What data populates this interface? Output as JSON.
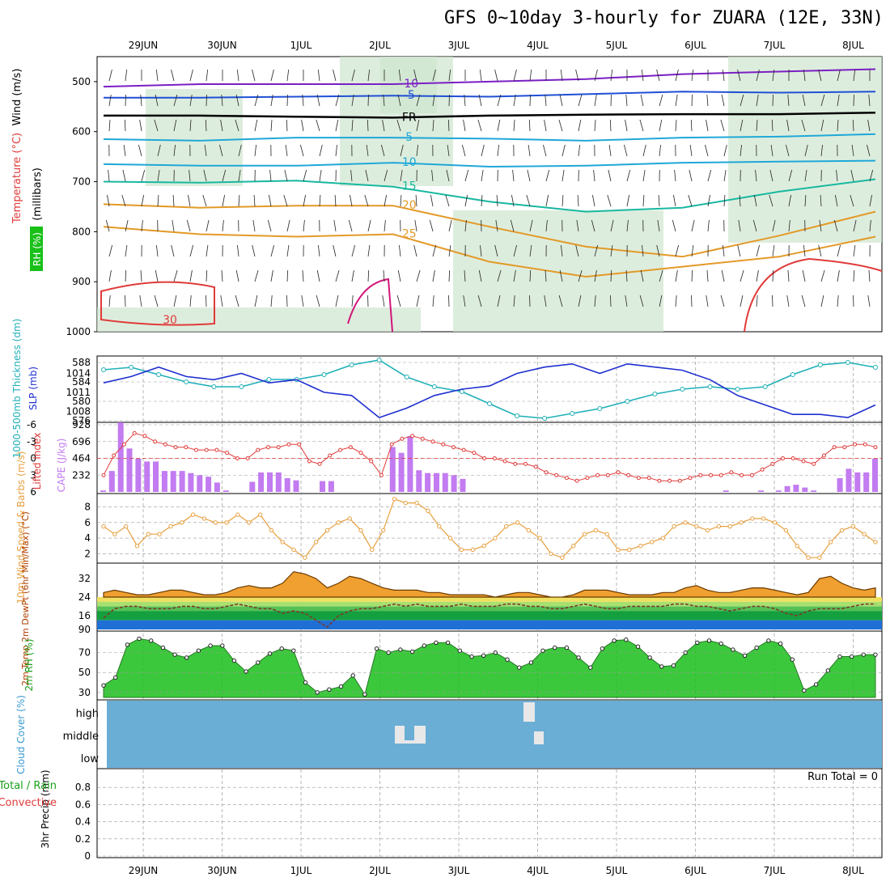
{
  "title": "GFS 0~10day 3-hourly for ZUARA (12E, 33N)",
  "dates": [
    "29JUN",
    "30JUN",
    "1JUL",
    "2JUL",
    "3JUL",
    "4JUL",
    "5JUL",
    "6JUL",
    "7JUL",
    "8JUL"
  ],
  "colors": {
    "purple": "#7a1fc4",
    "blue": "#1f4fd6",
    "cyan": "#1fa8d8",
    "teal": "#18b8a0",
    "orange": "#e39a28",
    "red": "#e03a3a",
    "magenta": "#d0157a",
    "rh_fill": "#cfe6cf",
    "cloud": "#6aaed6",
    "grid": "#999999",
    "cape_bar": "#c27bf0",
    "wind": "#e8a040",
    "rh2m": "#1bbf1b",
    "temp_fill": "#e66a10"
  },
  "chart_data": [
    {
      "id": "upper_air",
      "type": "contour",
      "ylabel": "(millibars)",
      "side_labels": [
        "Wind (m/s)",
        "Temperature (°C)",
        "RH (%)"
      ],
      "yticks": [
        "500",
        "600",
        "700",
        "800",
        "900",
        "1000"
      ],
      "ylim": [
        1000,
        450
      ],
      "isotherms": [
        {
          "label": "-10",
          "level": [
            510,
            505,
            505,
            505,
            500,
            495,
            485,
            480,
            475
          ]
        },
        {
          "label": "-5",
          "level": [
            532,
            532,
            530,
            528,
            530,
            525,
            520,
            522,
            520
          ]
        },
        {
          "label": "FR",
          "level": [
            568,
            568,
            570,
            572,
            568,
            566,
            565,
            565,
            562
          ]
        },
        {
          "label": "5",
          "level": [
            615,
            618,
            612,
            612,
            614,
            618,
            612,
            610,
            605
          ]
        },
        {
          "label": "10",
          "level": [
            665,
            668,
            668,
            662,
            670,
            668,
            662,
            660,
            658
          ]
        },
        {
          "label": "15",
          "level": [
            700,
            702,
            698,
            710,
            740,
            760,
            752,
            720,
            695
          ]
        },
        {
          "label": "20",
          "level": [
            745,
            752,
            748,
            748,
            790,
            830,
            850,
            808,
            760
          ]
        },
        {
          "label": "25",
          "level": [
            790,
            805,
            810,
            805,
            860,
            890,
            870,
            850,
            810
          ]
        }
      ],
      "labels": [
        "-10",
        "-5",
        "FR",
        "5",
        "10",
        "15",
        "20",
        "25",
        "30"
      ]
    },
    {
      "id": "thickness_slp",
      "type": "line",
      "ylabel": "1000-500mb Thickness (dm)",
      "ylabel2": "SLP (mb)",
      "yticks_left": [
        "576",
        "580",
        "584",
        "588"
      ],
      "yticks_right": [
        "1008",
        "1011",
        "1014"
      ],
      "series": [
        {
          "name": "Thickness",
          "color": "#1fb0b8",
          "values": [
            586.5,
            587.0,
            585.5,
            584.0,
            583.0,
            583.0,
            584.5,
            584.5,
            585.5,
            587.5,
            588.5,
            585.0,
            583.0,
            582.0,
            579.5,
            577.0,
            576.5,
            577.5,
            578.5,
            580.0,
            581.5,
            582.5,
            583.0,
            582.5,
            583.0,
            585.5,
            587.5,
            588.0,
            587.0
          ]
        },
        {
          "name": "SLP",
          "color": "#1f2fd0",
          "values": [
            1012.5,
            1013.5,
            1015.0,
            1013.5,
            1013.0,
            1014.0,
            1012.5,
            1013.0,
            1011.0,
            1010.5,
            1007.0,
            1008.5,
            1010.5,
            1011.5,
            1012.0,
            1014.0,
            1015.0,
            1015.5,
            1014.0,
            1015.5,
            1015.0,
            1014.5,
            1013.0,
            1010.5,
            1009.0,
            1007.5,
            1007.5,
            1007.0,
            1009.0
          ]
        }
      ]
    },
    {
      "id": "cape_li",
      "type": "bar",
      "ylabel": "Lifted Index",
      "ylabel2": "CAPE (J/kg)",
      "yticks_left": [
        "-6",
        "-3",
        "0",
        "3",
        "6"
      ],
      "yticks_right": [
        "232",
        "464",
        "696",
        "928"
      ],
      "series": [
        {
          "name": "CAPE",
          "values": [
            20,
            290,
            960,
            600,
            460,
            420,
            420,
            290,
            290,
            290,
            260,
            230,
            210,
            130,
            20,
            0,
            0,
            140,
            270,
            270,
            270,
            190,
            160,
            0,
            0,
            150,
            150,
            0,
            0,
            0,
            0,
            0,
            0,
            620,
            540,
            770,
            300,
            260,
            260,
            260,
            230,
            180,
            0,
            0,
            0,
            0,
            0,
            0,
            0,
            0,
            0,
            0,
            0,
            0,
            0,
            0,
            0,
            0,
            0,
            0,
            0,
            0,
            0,
            0,
            0,
            0,
            0,
            0,
            0,
            0,
            0,
            20,
            0,
            0,
            0,
            20,
            0,
            20,
            80,
            100,
            60,
            20,
            0,
            0,
            190,
            320,
            270,
            270,
            460
          ]
        },
        {
          "name": "Lifted Index",
          "values": [
            3.0,
            -0.5,
            -2.5,
            -4.5,
            -4.0,
            -3.0,
            -2.5,
            -2.0,
            -2.0,
            -1.5,
            -1.5,
            -1.5,
            -1.0,
            0.0,
            0.0,
            -1.5,
            -2.0,
            -2.0,
            -2.5,
            -2.5,
            0.5,
            1.0,
            -0.5,
            -1.5,
            -2.0,
            -1.0,
            0.5,
            3.0,
            -2.5,
            -3.5,
            -4.0,
            -3.5,
            -3.0,
            -2.5,
            -2.0,
            -1.5,
            -1.0,
            0.0,
            0.0,
            0.5,
            1.0,
            1.0,
            1.5,
            2.5,
            3.0,
            3.5,
            4.0,
            3.5,
            3.0,
            3.0,
            2.5,
            3.0,
            3.5,
            3.5,
            4.0,
            4.0,
            4.0,
            3.5,
            3.0,
            3.0,
            3.0,
            2.5,
            3.0,
            3.0,
            2.0,
            1.0,
            0.0,
            0.0,
            0.5,
            1.0,
            -0.5,
            -2.0,
            -2.0,
            -2.5,
            -2.5,
            -2.0
          ]
        }
      ]
    },
    {
      "id": "wind10m",
      "type": "line",
      "ylabel": "10m Wind Speed & Barbs (m/s)",
      "yticks": [
        "2",
        "4",
        "6",
        "8"
      ],
      "values": [
        5.5,
        4.5,
        5.5,
        3.0,
        4.5,
        4.5,
        5.5,
        6.0,
        7.0,
        6.5,
        6.0,
        6.0,
        7.0,
        6.0,
        7.0,
        5.0,
        3.5,
        2.5,
        1.5,
        3.5,
        5.0,
        6.0,
        6.5,
        5.0,
        2.5,
        5.0,
        9.0,
        8.5,
        8.5,
        7.5,
        5.5,
        4.0,
        2.5,
        2.5,
        3.0,
        4.0,
        5.5,
        6.0,
        5.0,
        4.0,
        2.0,
        1.5,
        3.0,
        4.5,
        5.0,
        4.5,
        2.5,
        2.5,
        3.0,
        3.5,
        4.0,
        5.5,
        6.0,
        5.5,
        5.0,
        5.5,
        5.5,
        6.0,
        6.5,
        6.5,
        6.0,
        5.0,
        3.0,
        1.5,
        1.5,
        3.5,
        5.0,
        5.5,
        4.5,
        3.5
      ]
    },
    {
      "id": "temp2m",
      "type": "area",
      "ylabel": "2m Temp 2m DewPt (6hr Min/Max) (°C)",
      "yticks": [
        "90",
        "16",
        "24",
        "32"
      ],
      "series": [
        {
          "name": "2m Temp",
          "values": [
            26,
            27,
            26,
            25,
            25,
            26,
            27,
            27,
            26,
            25,
            25,
            26,
            28,
            29,
            28,
            28,
            30,
            35,
            34,
            32,
            28,
            30,
            33,
            32,
            30,
            28,
            27,
            27,
            27,
            26,
            26,
            25,
            25,
            25,
            25,
            24,
            25,
            26,
            26,
            25,
            24,
            24,
            25,
            27,
            27,
            27,
            26,
            25,
            25,
            25,
            26,
            26,
            28,
            29,
            27,
            26,
            26,
            27,
            28,
            28,
            27,
            26,
            25,
            26,
            32,
            33,
            30,
            28,
            27,
            28
          ]
        },
        {
          "name": "2m DewPt",
          "values": [
            15,
            19,
            20,
            20,
            19,
            19,
            19,
            20,
            20,
            19,
            19,
            20,
            21,
            20,
            19,
            19,
            17,
            18,
            17,
            14,
            11,
            16,
            18,
            19,
            19,
            20,
            21,
            20,
            21,
            20,
            20,
            20,
            21,
            20,
            20,
            20,
            21,
            21,
            20,
            20,
            19,
            19,
            20,
            21,
            20,
            19,
            19,
            20,
            20,
            20,
            20,
            21,
            21,
            20,
            20,
            19,
            18,
            19,
            20,
            20,
            19,
            17,
            16,
            18,
            19,
            19,
            19,
            20,
            21,
            21
          ]
        }
      ]
    },
    {
      "id": "rh2m",
      "type": "area",
      "ylabel": "2m RH (%)",
      "yticks": [
        "30",
        "50",
        "70"
      ],
      "values": [
        37,
        45,
        78,
        84,
        82,
        75,
        68,
        65,
        72,
        77,
        77,
        62,
        51,
        60,
        69,
        74,
        72,
        40,
        30,
        33,
        36,
        47,
        28,
        74,
        70,
        73,
        71,
        77,
        80,
        80,
        72,
        66,
        67,
        70,
        63,
        55,
        60,
        72,
        75,
        75,
        65,
        55,
        74,
        82,
        83,
        76,
        65,
        56,
        57,
        70,
        80,
        82,
        79,
        73,
        67,
        75,
        82,
        79,
        63,
        32,
        38,
        52,
        66,
        66,
        68,
        68
      ]
    },
    {
      "id": "cloud",
      "type": "heatmap",
      "ylabel": "Cloud Cover (%)",
      "levels": [
        "high",
        "middle",
        "low"
      ]
    },
    {
      "id": "precip",
      "type": "bar",
      "ylabel": "3hr Precip (mm)",
      "side_labels": [
        "Total / Rain",
        "Convective"
      ],
      "yticks": [
        "0",
        "0.2",
        "0.4",
        "0.6",
        "0.8"
      ],
      "run_total": "Run Total = 0",
      "values": []
    }
  ]
}
